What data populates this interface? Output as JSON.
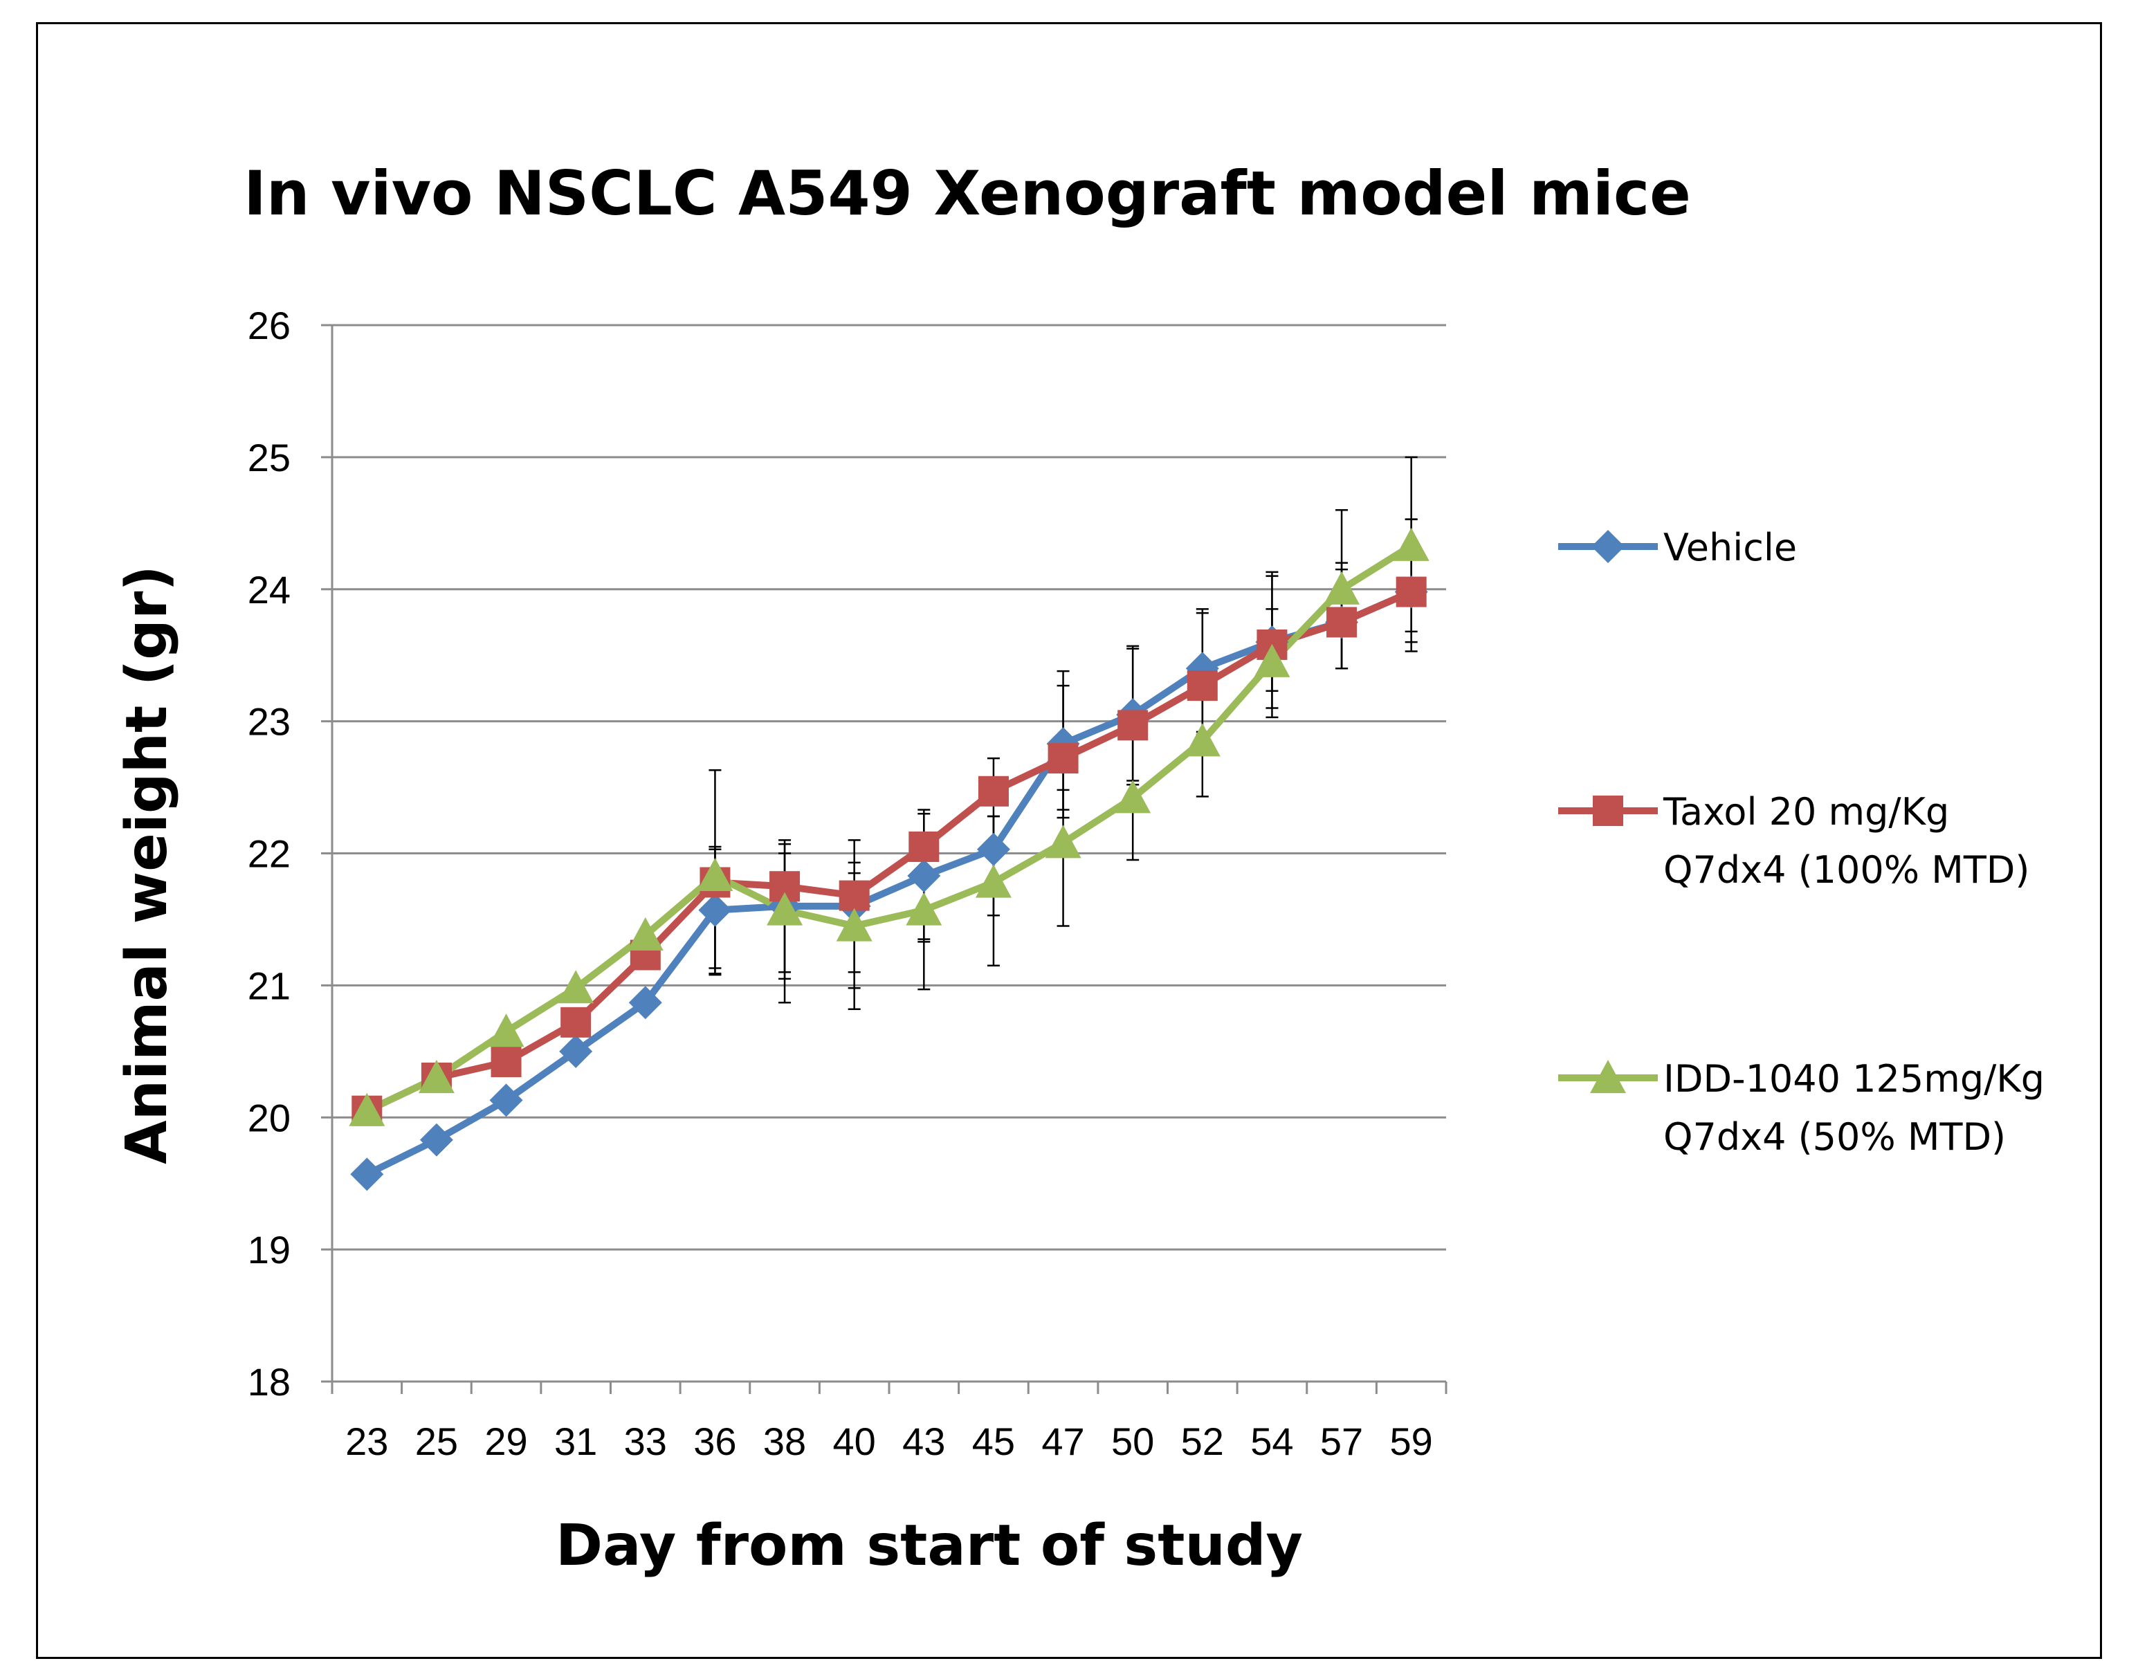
{
  "chart_data": {
    "type": "line",
    "title": "In vivo NSCLC A549 Xenograft model mice",
    "xlabel": "Day from start of study",
    "ylabel": "Animal weight (gr)",
    "categories": [
      "23",
      "25",
      "29",
      "31",
      "33",
      "36",
      "38",
      "40",
      "43",
      "45",
      "47",
      "50",
      "52",
      "54",
      "57",
      "59"
    ],
    "ylim": [
      18,
      26
    ],
    "yticks": [
      18,
      19,
      20,
      21,
      22,
      23,
      24,
      25,
      26
    ],
    "grid": true,
    "legend_position": "right",
    "series": [
      {
        "name": "Vehicle",
        "legend_lines": [
          "Vehicle"
        ],
        "marker": "diamond",
        "color": "#4F81BD",
        "values": [
          19.57,
          19.83,
          20.13,
          20.5,
          20.87,
          21.57,
          21.6,
          21.6,
          21.83,
          22.03,
          22.83,
          23.05,
          23.4,
          23.6,
          23.75,
          23.98
        ],
        "err_low": [
          0,
          0,
          0,
          0,
          0,
          0.48,
          0.5,
          0.5,
          0.5,
          0.5,
          0.5,
          0.5,
          0.5,
          0.5,
          0.35,
          0.38
        ],
        "err_high": [
          0,
          0,
          0,
          0,
          0,
          0.48,
          0.5,
          0.5,
          0.5,
          0.25,
          0.55,
          0.5,
          0.45,
          0.5,
          0.4,
          0.55
        ]
      },
      {
        "name": "Taxol 20 mg/Kg Q7dx4 (100% MTD)",
        "legend_lines": [
          "Taxol 20 mg/Kg",
          "Q7dx4 (100% MTD)"
        ],
        "marker": "square",
        "color": "#C0504D",
        "values": [
          20.05,
          20.3,
          20.42,
          20.72,
          21.23,
          21.78,
          21.75,
          21.68,
          22.05,
          22.47,
          22.72,
          22.97,
          23.27,
          23.58,
          23.75,
          23.98
        ],
        "err_low": [
          0,
          0,
          0,
          0,
          0,
          0.7,
          0.7,
          0.7,
          0.7,
          0.7,
          0.45,
          0.45,
          0.35,
          0.35,
          0.35,
          0.45
        ],
        "err_high": [
          0,
          0,
          0,
          0,
          0,
          0.25,
          0.25,
          0.25,
          0.25,
          0.25,
          0.55,
          0.6,
          0.55,
          0.55,
          0.45,
          0.55
        ]
      },
      {
        "name": "IDD-1040 125mg/Kg Q7dx4 (50% MTD)",
        "legend_lines": [
          "IDD-1040 125mg/Kg",
          "Q7dx4  (50% MTD)"
        ],
        "marker": "triangle",
        "color": "#9BBB59",
        "values": [
          20.05,
          20.3,
          20.65,
          20.98,
          21.38,
          21.83,
          21.57,
          21.45,
          21.57,
          21.78,
          22.08,
          22.42,
          22.85,
          23.45,
          24.0,
          24.33
        ],
        "err_low": [
          0,
          0,
          0,
          0,
          0,
          0.7,
          0.7,
          0.63,
          0.6,
          0.63,
          0.63,
          0.47,
          0.42,
          0.42,
          0.6,
          0.65
        ],
        "err_high": [
          0,
          0,
          0,
          0,
          0,
          0.8,
          0.5,
          0.4,
          0.47,
          0.5,
          0.4,
          0.5,
          0.4,
          0.4,
          0.6,
          0.67
        ]
      }
    ]
  }
}
